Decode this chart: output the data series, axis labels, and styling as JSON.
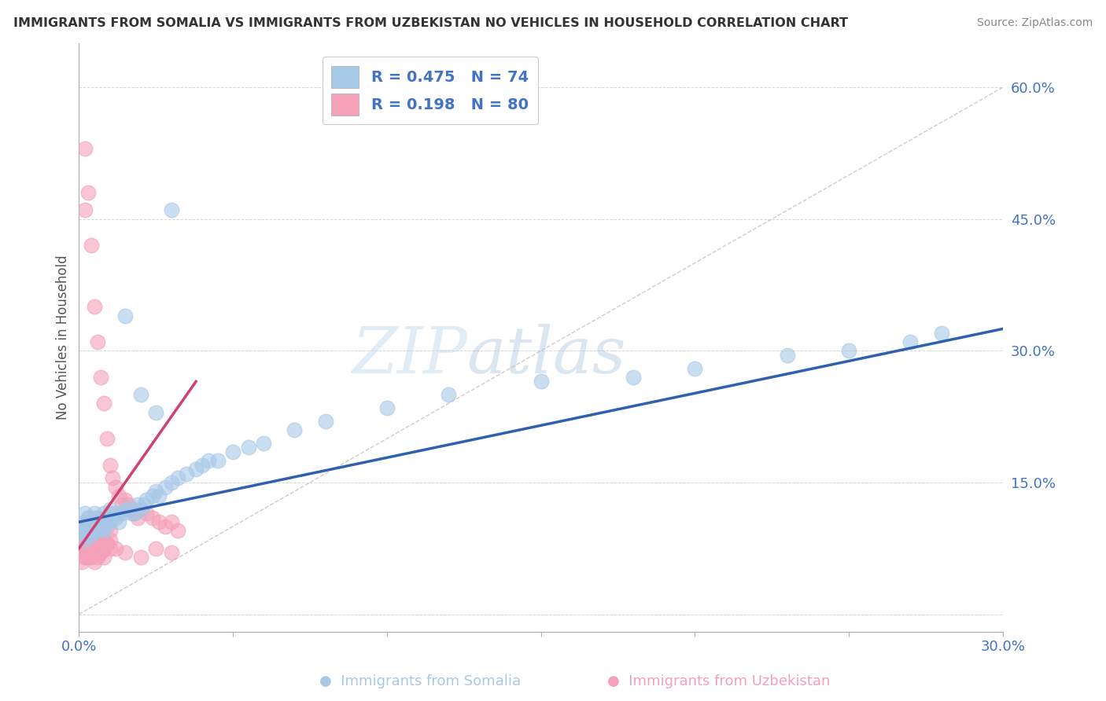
{
  "title": "IMMIGRANTS FROM SOMALIA VS IMMIGRANTS FROM UZBEKISTAN NO VEHICLES IN HOUSEHOLD CORRELATION CHART",
  "source": "Source: ZipAtlas.com",
  "ylabel": "No Vehicles in Household",
  "xlabel_somalia": "Immigrants from Somalia",
  "xlabel_uzbekistan": "Immigrants from Uzbekistan",
  "legend_somalia": "R = 0.475   N = 74",
  "legend_uzbekistan": "R = 0.198   N = 80",
  "xlim": [
    0.0,
    0.3
  ],
  "ylim": [
    -0.02,
    0.65
  ],
  "yticks": [
    0.0,
    0.15,
    0.3,
    0.45,
    0.6
  ],
  "ytick_labels": [
    "",
    "15.0%",
    "30.0%",
    "45.0%",
    "60.0%"
  ],
  "xticks": [
    0.0,
    0.05,
    0.1,
    0.15,
    0.2,
    0.25,
    0.3
  ],
  "xtick_labels": [
    "0.0%",
    "",
    "",
    "",
    "",
    "",
    "30.0%"
  ],
  "color_somalia": "#a8c8e8",
  "color_uzbekistan": "#f4a0b8",
  "trendline_somalia": "#3060b0",
  "trendline_uzbekistan": "#d04070",
  "background_color": "#ffffff",
  "grid_color": "#cccccc",
  "watermark_zip": "ZIP",
  "watermark_atlas": "atlas",
  "somalia_x": [
    0.001,
    0.002,
    0.002,
    0.002,
    0.002,
    0.002,
    0.003,
    0.003,
    0.003,
    0.003,
    0.004,
    0.004,
    0.004,
    0.004,
    0.005,
    0.005,
    0.005,
    0.005,
    0.006,
    0.006,
    0.006,
    0.007,
    0.007,
    0.007,
    0.008,
    0.008,
    0.008,
    0.009,
    0.009,
    0.01,
    0.01,
    0.01,
    0.011,
    0.012,
    0.012,
    0.013,
    0.014,
    0.015,
    0.016,
    0.017,
    0.018,
    0.019,
    0.02,
    0.021,
    0.022,
    0.024,
    0.025,
    0.026,
    0.028,
    0.03,
    0.032,
    0.035,
    0.038,
    0.04,
    0.042,
    0.045,
    0.05,
    0.055,
    0.06,
    0.07,
    0.08,
    0.1,
    0.12,
    0.15,
    0.18,
    0.2,
    0.23,
    0.25,
    0.27,
    0.28,
    0.015,
    0.02,
    0.025,
    0.03
  ],
  "somalia_y": [
    0.095,
    0.115,
    0.1,
    0.09,
    0.105,
    0.085,
    0.11,
    0.105,
    0.095,
    0.1,
    0.105,
    0.095,
    0.1,
    0.09,
    0.115,
    0.105,
    0.095,
    0.1,
    0.11,
    0.1,
    0.095,
    0.108,
    0.098,
    0.105,
    0.115,
    0.1,
    0.095,
    0.11,
    0.105,
    0.12,
    0.115,
    0.105,
    0.11,
    0.115,
    0.11,
    0.105,
    0.115,
    0.12,
    0.12,
    0.115,
    0.115,
    0.125,
    0.12,
    0.125,
    0.13,
    0.135,
    0.14,
    0.135,
    0.145,
    0.15,
    0.155,
    0.16,
    0.165,
    0.17,
    0.175,
    0.175,
    0.185,
    0.19,
    0.195,
    0.21,
    0.22,
    0.235,
    0.25,
    0.265,
    0.27,
    0.28,
    0.295,
    0.3,
    0.31,
    0.32,
    0.34,
    0.25,
    0.23,
    0.46
  ],
  "uzbekistan_x": [
    0.001,
    0.001,
    0.001,
    0.001,
    0.001,
    0.002,
    0.002,
    0.002,
    0.002,
    0.002,
    0.002,
    0.002,
    0.003,
    0.003,
    0.003,
    0.003,
    0.003,
    0.003,
    0.004,
    0.004,
    0.004,
    0.004,
    0.004,
    0.004,
    0.005,
    0.005,
    0.005,
    0.005,
    0.005,
    0.005,
    0.006,
    0.006,
    0.006,
    0.006,
    0.006,
    0.007,
    0.007,
    0.007,
    0.007,
    0.007,
    0.008,
    0.008,
    0.008,
    0.008,
    0.009,
    0.009,
    0.009,
    0.01,
    0.01,
    0.01,
    0.011,
    0.012,
    0.013,
    0.014,
    0.015,
    0.016,
    0.017,
    0.018,
    0.019,
    0.02,
    0.022,
    0.024,
    0.026,
    0.028,
    0.03,
    0.032,
    0.002,
    0.003,
    0.004,
    0.005,
    0.006,
    0.007,
    0.008,
    0.009,
    0.01,
    0.012,
    0.015,
    0.02,
    0.025,
    0.03
  ],
  "uzbekistan_y": [
    0.07,
    0.08,
    0.06,
    0.09,
    0.075,
    0.53,
    0.1,
    0.08,
    0.065,
    0.075,
    0.46,
    0.085,
    0.48,
    0.11,
    0.09,
    0.075,
    0.065,
    0.085,
    0.42,
    0.105,
    0.085,
    0.095,
    0.075,
    0.065,
    0.35,
    0.11,
    0.09,
    0.08,
    0.07,
    0.06,
    0.31,
    0.1,
    0.085,
    0.075,
    0.065,
    0.27,
    0.1,
    0.09,
    0.08,
    0.07,
    0.24,
    0.105,
    0.085,
    0.075,
    0.2,
    0.1,
    0.08,
    0.17,
    0.095,
    0.075,
    0.155,
    0.145,
    0.135,
    0.125,
    0.13,
    0.125,
    0.12,
    0.115,
    0.11,
    0.12,
    0.115,
    0.11,
    0.105,
    0.1,
    0.105,
    0.095,
    0.065,
    0.07,
    0.075,
    0.08,
    0.075,
    0.07,
    0.065,
    0.08,
    0.085,
    0.075,
    0.07,
    0.065,
    0.075,
    0.07
  ],
  "somalia_trend_x": [
    0.0,
    0.3
  ],
  "somalia_trend_y": [
    0.105,
    0.325
  ],
  "uzbekistan_trend_x": [
    0.0,
    0.038
  ],
  "uzbekistan_trend_y": [
    0.075,
    0.265
  ],
  "ref_line_x": [
    0.0,
    0.3
  ],
  "ref_line_y": [
    0.0,
    0.6
  ]
}
